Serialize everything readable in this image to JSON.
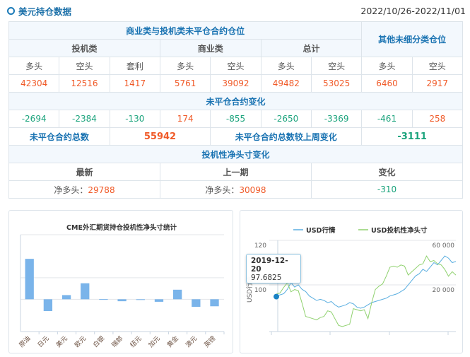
{
  "header": {
    "title": "美元持仓数据",
    "date_range": "2022/10/26-2022/11/01"
  },
  "table": {
    "group1": "商业类与投机类未平仓合约仓位",
    "group2": "其他未细分类仓位",
    "sub": [
      "投机类",
      "商业类",
      "总计"
    ],
    "cols": [
      "多头",
      "空头",
      "套利",
      "多头",
      "空头",
      "多头",
      "空头",
      "多头",
      "空头"
    ],
    "values": [
      "42304",
      "12516",
      "1417",
      "5761",
      "39092",
      "49482",
      "53025",
      "6460",
      "2917"
    ],
    "change_title": "未平仓合约变化",
    "changes": [
      "-2694",
      "-2384",
      "-130",
      "174",
      "-855",
      "-2650",
      "-3369",
      "-461",
      "258"
    ],
    "total_label": "未平仓合约总数",
    "total_value": "55942",
    "total_change_label": "未平仓合约总数较上周变化",
    "total_change_value": "-3111",
    "net_title": "投机性净头寸变化",
    "net_cols": [
      "最新",
      "上一期",
      "变化"
    ],
    "net_prefix": "净多头：",
    "latest": "29788",
    "previous": "30098",
    "change": "-310"
  },
  "colors": {
    "accent": "#1a73b2",
    "positive": "#f05a28",
    "negative": "#1aa37c",
    "bar": "#7ab4ea",
    "usd_line": "#5aaee0",
    "net_line": "#8fd16e"
  },
  "chart_data": [
    {
      "type": "bar",
      "title": "CME外汇期货持仓投机性净头寸统计",
      "categories": [
        "原油",
        "日元",
        "美元",
        "欧元",
        "白银",
        "瑞郎",
        "纽元",
        "加元",
        "黄金",
        "澳元",
        "英镑"
      ],
      "values": [
        288000,
        -84000,
        29788,
        114000,
        1000,
        -14000,
        -3000,
        -18000,
        68000,
        -54000,
        -50000
      ],
      "ylim": [
        -230000,
        460000
      ],
      "grid": true
    },
    {
      "type": "line",
      "legend": [
        "USD行情",
        "USD投机性净头寸"
      ],
      "legend_position": "top",
      "ylabel": "USD行情",
      "yticks_left": [
        "100",
        "120"
      ],
      "yticks_right": [
        "20 000",
        "60 000"
      ],
      "ylim_left": [
        82,
        123
      ],
      "ylim_right": [
        -15500,
        66000
      ],
      "tooltip": {
        "date": "2019-12-20",
        "value": "97.6825"
      },
      "series": [
        {
          "name": "USD行情",
          "axis": "left",
          "values": [
            97.7,
            98.5,
            99,
            101,
            104,
            102,
            103,
            101,
            100,
            98,
            97,
            96,
            96.5,
            96,
            95,
            95.5,
            94,
            93,
            93.5,
            94,
            95,
            94.5,
            93,
            92.5,
            93,
            94,
            95,
            95.5,
            96,
            96.5,
            97,
            98,
            98.5,
            99,
            100,
            101,
            103,
            105,
            107,
            108,
            110,
            109,
            111,
            113,
            112,
            114,
            116,
            115,
            113,
            113.5
          ]
        },
        {
          "name": "USD投机性净头寸",
          "axis": "right",
          "values": [
            18000,
            19000,
            24000,
            28000,
            20000,
            22000,
            21000,
            10000,
            -2000,
            -3000,
            -4000,
            -5000,
            -3000,
            -2000,
            3000,
            2000,
            -4000,
            -10000,
            -11000,
            -10000,
            -9000,
            5000,
            4000,
            3000,
            4000,
            -4000,
            10000,
            22000,
            25000,
            27000,
            34000,
            42000,
            43000,
            42000,
            44000,
            43000,
            35000,
            38000,
            41000,
            44000,
            45000,
            52000,
            47000,
            48000,
            45000,
            44000,
            40000,
            34000,
            38000,
            35000
          ]
        }
      ]
    }
  ]
}
